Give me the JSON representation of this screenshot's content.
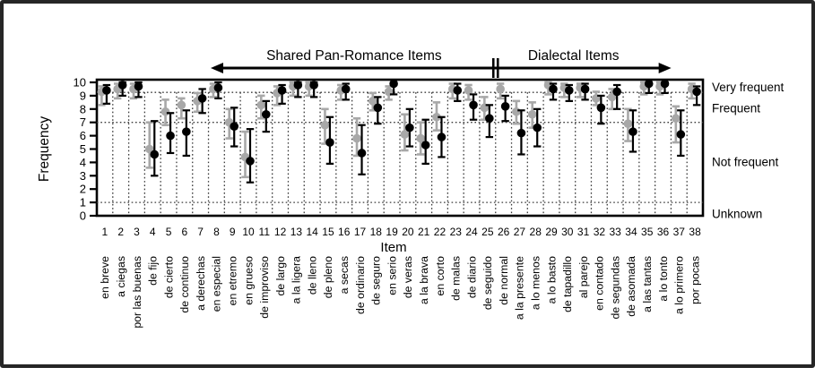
{
  "figure": {
    "groups": {
      "left_label": "Shared Pan-Romance Items",
      "right_label": "Dialectal Items",
      "arrow_from_item": 7.75,
      "divider_after_item": 25,
      "arrow_to_item": 36.4
    }
  },
  "chart_data": {
    "type": "scatter",
    "title": "",
    "xlabel": "Item",
    "ylabel": "Frequency",
    "ylim": [
      0,
      10
    ],
    "yticks": [
      0,
      1,
      2,
      3,
      4,
      5,
      6,
      7,
      8,
      9,
      10
    ],
    "grid": {
      "h_dotted_lines_at": [
        9.25,
        7,
        1
      ],
      "v_dotted_between_items": true,
      "v_dotted_top_value": 9.25
    },
    "legend_position": "none",
    "region_labels": [
      {
        "label": "Very frequent",
        "y": 9.65
      },
      {
        "label": "Frequent",
        "y": 8.05
      },
      {
        "label": "Not frequent",
        "y": 4.05
      },
      {
        "label": "Unknown",
        "y": 0.15
      }
    ],
    "categories": [
      1,
      2,
      3,
      4,
      5,
      6,
      7,
      8,
      9,
      10,
      11,
      12,
      13,
      14,
      15,
      16,
      17,
      18,
      19,
      20,
      21,
      22,
      23,
      24,
      25,
      26,
      27,
      28,
      29,
      30,
      31,
      32,
      33,
      34,
      35,
      36,
      37,
      38
    ],
    "item_labels": [
      "en breve",
      "a ciegas",
      "por las buenas",
      "de fijo",
      "de cierto",
      "de continuo",
      "a derechas",
      "en especial",
      "en etremo",
      "en grueso",
      "de improviso",
      "de largo",
      "a la ligera",
      "de lleno",
      "de pleno",
      "a secas",
      "de ordinario",
      "de seguro",
      "en serio",
      "de veras",
      "a la brava",
      "en corto",
      "de malas",
      "de diario",
      "de seguido",
      "de normal",
      "a la presente",
      "a lo menos",
      "a lo basto",
      "de tapadillo",
      "al parejo",
      "en contado",
      "de segundas",
      "de asomada",
      "a las tantas",
      "a lo tonto",
      "a lo primero",
      "por pocas"
    ],
    "series": [
      {
        "name": "gray-group",
        "color": "#a8a8a8",
        "values": [
          9.3,
          9.5,
          9.5,
          5.0,
          7.8,
          8.3,
          8.6,
          9.5,
          7.0,
          4.4,
          8.3,
          9.2,
          9.7,
          9.7,
          6.8,
          9.4,
          5.8,
          8.6,
          9.3,
          6.1,
          5.8,
          7.4,
          9.5,
          9.4,
          8.1,
          9.5,
          7.8,
          7.6,
          9.8,
          9.6,
          9.6,
          8.8,
          8.9,
          6.9,
          9.7,
          9.7,
          7.3,
          9.5
        ],
        "err_low": [
          8.3,
          8.8,
          8.8,
          3.6,
          6.8,
          7.3,
          7.8,
          8.9,
          5.8,
          2.9,
          7.3,
          8.3,
          9.0,
          9.0,
          5.4,
          8.7,
          4.5,
          7.9,
          8.7,
          4.9,
          4.6,
          6.4,
          8.8,
          8.7,
          7.2,
          8.8,
          6.9,
          6.6,
          9.1,
          8.9,
          8.9,
          8.3,
          8.0,
          5.6,
          9.1,
          9.1,
          5.5,
          8.8
        ],
        "err_high": [
          9.7,
          9.9,
          9.9,
          7.0,
          8.7,
          8.8,
          9.2,
          9.9,
          8.0,
          6.3,
          9.0,
          9.7,
          10,
          10,
          8.0,
          9.8,
          7.3,
          9.2,
          9.7,
          7.6,
          7.0,
          8.5,
          9.9,
          9.8,
          8.9,
          9.9,
          8.6,
          8.5,
          10,
          9.9,
          9.9,
          9.3,
          9.5,
          8.0,
          10,
          10,
          8.2,
          9.9
        ]
      },
      {
        "name": "black-group",
        "color": "#000000",
        "values": [
          9.4,
          9.8,
          9.7,
          4.6,
          6.0,
          6.3,
          8.8,
          9.6,
          6.7,
          4.1,
          7.6,
          9.4,
          9.8,
          9.8,
          5.5,
          9.5,
          4.7,
          8.1,
          9.9,
          6.6,
          5.3,
          5.9,
          9.4,
          8.3,
          7.3,
          8.2,
          6.2,
          6.6,
          9.5,
          9.4,
          9.5,
          8.1,
          9.3,
          6.3,
          9.9,
          9.9,
          6.1,
          9.3
        ],
        "err_low": [
          8.4,
          9.0,
          8.9,
          3.0,
          4.7,
          4.5,
          7.7,
          8.8,
          5.2,
          2.5,
          6.3,
          8.4,
          8.9,
          8.9,
          3.9,
          8.7,
          3.1,
          6.9,
          9.1,
          5.2,
          3.9,
          4.4,
          8.6,
          7.2,
          5.9,
          7.1,
          4.6,
          5.2,
          8.7,
          8.6,
          8.7,
          6.9,
          8.0,
          4.8,
          9.2,
          9.2,
          4.5,
          8.3
        ],
        "err_high": [
          9.8,
          10,
          10,
          7.1,
          7.7,
          7.9,
          9.5,
          10,
          8.1,
          6.5,
          8.6,
          9.8,
          10,
          10,
          7.4,
          9.9,
          6.8,
          8.9,
          10,
          8.0,
          7.2,
          7.4,
          9.9,
          9.1,
          8.3,
          9.0,
          7.9,
          8.0,
          9.9,
          9.8,
          9.9,
          9.0,
          9.8,
          7.9,
          10,
          10,
          7.9,
          9.7
        ]
      }
    ]
  }
}
